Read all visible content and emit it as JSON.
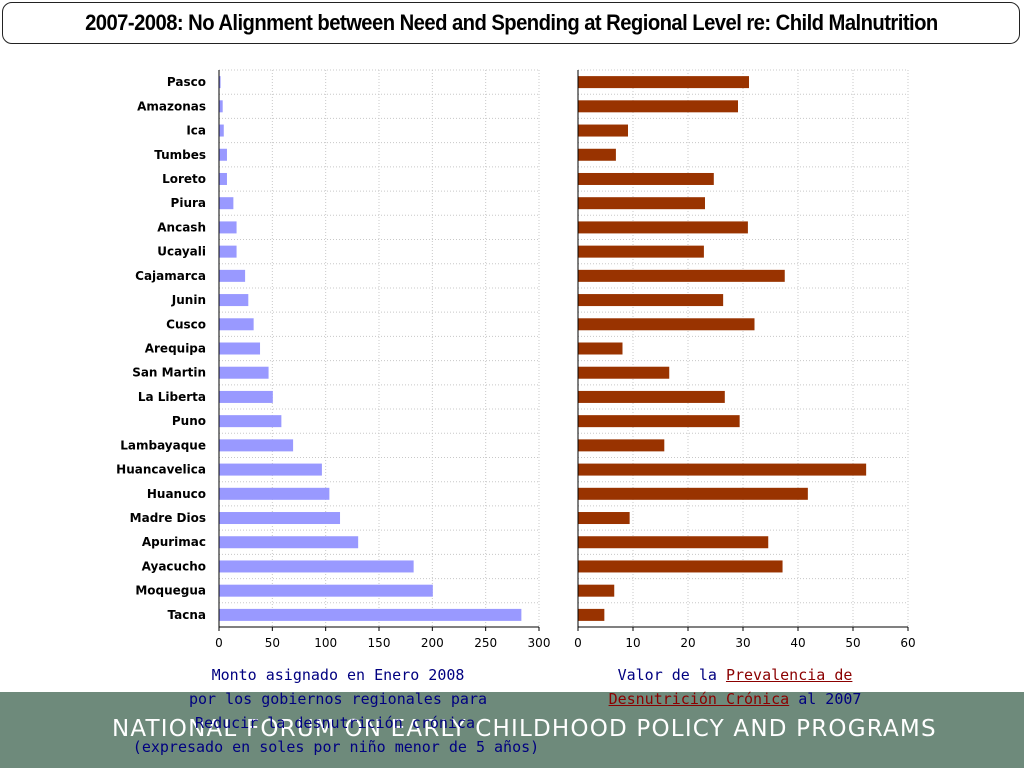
{
  "title": "2007-2008: No Alignment between Need and Spending at Regional Level re: Child Malnutrition",
  "footer": "NATIONAL FORUM ON EARLY CHILDHOOD POLICY AND PROGRAMS",
  "colors": {
    "left_bars": "#9999ff",
    "right_bars": "#993300",
    "caption_text": "#000080",
    "caption_highlight": "#8b0000",
    "footer_band": "#6e8a7b"
  },
  "captions": {
    "left_line1": "Monto asignado en Enero 2008",
    "left_line2": "por los gobiernos regionales para",
    "left_line3": "Reducir la desnutrición crónica",
    "left_line4": "(expresado en soles por niño menor de 5 años)",
    "right_prefix": "Valor de la",
    "right_highlight1": "Prevalencia de",
    "right_highlight2": "Desnutrición Crónica",
    "right_suffix": "al 2007"
  },
  "chart_data": [
    {
      "type": "bar",
      "orientation": "horizontal",
      "categories": [
        "Pasco",
        "Amazonas",
        "Ica",
        "Tumbes",
        "Loreto",
        "Piura",
        "Ancash",
        "Ucayali",
        "Cajamarca",
        "Junin",
        "Cusco",
        "Arequipa",
        "San Martin",
        "La Liberta",
        "Puno",
        "Lambayaque",
        "Huancavelica",
        "Huanuco",
        "Madre Dios",
        "Apurimac",
        "Ayacucho",
        "Moquegua",
        "Tacna"
      ],
      "values": [
        1,
        3,
        4,
        7,
        7,
        13,
        16,
        16,
        24,
        27,
        32,
        38,
        46,
        50,
        58,
        69,
        96,
        103,
        113,
        130,
        182,
        200,
        283
      ],
      "xlim": [
        0,
        300
      ],
      "ticks": [
        0,
        50,
        100,
        150,
        200,
        250,
        300
      ],
      "grid": true
    },
    {
      "type": "bar",
      "orientation": "horizontal",
      "categories": [
        "Pasco",
        "Amazonas",
        "Ica",
        "Tumbes",
        "Loreto",
        "Piura",
        "Ancash",
        "Ucayali",
        "Cajamarca",
        "Junin",
        "Cusco",
        "Arequipa",
        "San Martin",
        "La Liberta",
        "Puno",
        "Lambayaque",
        "Huancavelica",
        "Huanuco",
        "Madre Dios",
        "Apurimac",
        "Ayacucho",
        "Moquegua",
        "Tacna"
      ],
      "values": [
        31.0,
        29.0,
        9.0,
        6.8,
        24.6,
        23.0,
        30.8,
        22.8,
        37.5,
        26.3,
        32.0,
        8.0,
        16.5,
        26.6,
        29.3,
        15.6,
        52.3,
        41.7,
        9.3,
        34.5,
        37.1,
        6.5,
        4.7
      ],
      "xlim": [
        0,
        60
      ],
      "ticks": [
        0,
        10,
        20,
        30,
        40,
        50,
        60
      ],
      "grid": true
    }
  ]
}
